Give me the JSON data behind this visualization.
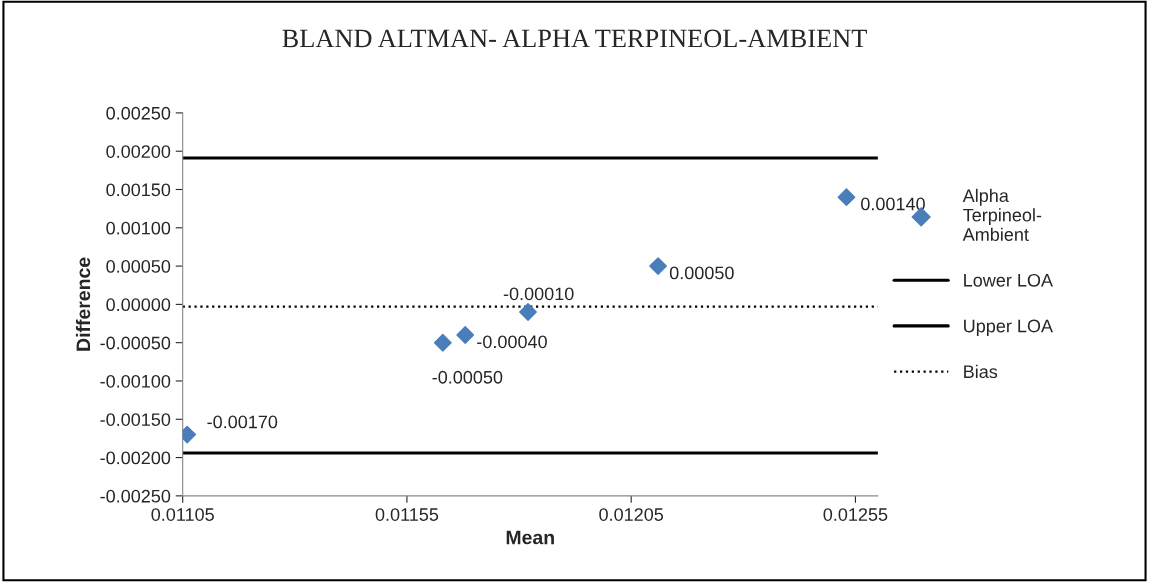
{
  "chart_data": {
    "type": "scatter",
    "title": "BLAND ALTMAN- ALPHA TERPINEOL-AMBIENT",
    "xlabel": "Mean",
    "ylabel": "Difference",
    "series": [
      {
        "name": "Alpha Terpineol-Ambient",
        "color": "#4a7ebb",
        "x": [
          0.01106,
          0.01163,
          0.01168,
          0.01182,
          0.01211,
          0.01253
        ],
        "values": [
          -0.0017,
          -0.0005,
          -0.0004,
          -0.0001,
          0.0005,
          0.0014
        ],
        "value_labels": [
          "-0.00170",
          "-0.00050",
          "-0.00040",
          "-0.00010",
          "0.00050",
          "0.00140"
        ]
      }
    ],
    "ref_lines": [
      {
        "axis": "y",
        "value": 0.00191,
        "label": "Lower LOA",
        "color": "#000000",
        "line_style": "solid"
      },
      {
        "axis": "y",
        "value": -0.00194,
        "label": "Upper LOA",
        "color": "#000000",
        "line_style": "solid"
      },
      {
        "axis": "y",
        "value": -3e-05,
        "label": "Bias",
        "color": "#000000",
        "line_style": "dotted"
      }
    ],
    "marker": "diamond",
    "grid": false,
    "legend": "right",
    "xlim": [
      0.01105,
      0.0126
    ],
    "xticks": [
      {
        "value": 0.01105,
        "label": "0.01105"
      },
      {
        "value": 0.01155,
        "label": "0.01155"
      },
      {
        "value": 0.01205,
        "label": "0.01205"
      },
      {
        "value": 0.01255,
        "label": "0.01255"
      }
    ],
    "ylim": [
      -0.0025,
      0.0025
    ],
    "yticks": [
      {
        "value": -0.0025,
        "label": "-0.00250"
      },
      {
        "value": -0.002,
        "label": "-0.00200"
      },
      {
        "value": -0.0015,
        "label": "-0.00150"
      },
      {
        "value": -0.001,
        "label": "-0.00100"
      },
      {
        "value": -0.0005,
        "label": "-0.00050"
      },
      {
        "value": 0,
        "label": "0.00000"
      },
      {
        "value": 0.0005,
        "label": "0.00050"
      },
      {
        "value": 0.001,
        "label": "0.00100"
      },
      {
        "value": 0.0015,
        "label": "0.00150"
      },
      {
        "value": 0.002,
        "label": "0.00200"
      },
      {
        "value": 0.0025,
        "label": "0.00250"
      }
    ]
  }
}
